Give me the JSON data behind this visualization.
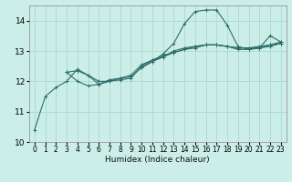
{
  "xlabel": "Humidex (Indice chaleur)",
  "bg_color": "#cceee8",
  "grid_color": "#aad8d0",
  "line_color": "#2d6e68",
  "xlim": [
    -0.5,
    23.5
  ],
  "ylim": [
    10,
    14.5
  ],
  "yticks": [
    10,
    11,
    12,
    13,
    14
  ],
  "xticks": [
    0,
    1,
    2,
    3,
    4,
    5,
    6,
    7,
    8,
    9,
    10,
    11,
    12,
    13,
    14,
    15,
    16,
    17,
    18,
    19,
    20,
    21,
    22,
    23
  ],
  "curves": [
    [
      0,
      10.4,
      1,
      11.5,
      2,
      11.8,
      3,
      12.0,
      4,
      12.4,
      5,
      12.2,
      6,
      11.9,
      7,
      12.0,
      8,
      12.1,
      9,
      12.2,
      10,
      12.55,
      11,
      12.7,
      12,
      12.8,
      13,
      13.0,
      14,
      13.1,
      15,
      13.15,
      16,
      13.2,
      17,
      13.2,
      18,
      13.15,
      19,
      13.1,
      20,
      13.1,
      21,
      13.15,
      22,
      13.2,
      23,
      13.3
    ],
    [
      3,
      12.3,
      4,
      12.0,
      5,
      11.85,
      6,
      11.9,
      7,
      12.05,
      8,
      12.1,
      9,
      12.15,
      10,
      12.45,
      11,
      12.65,
      12,
      12.8,
      13,
      12.95,
      14,
      13.05,
      15,
      13.15,
      16,
      13.2,
      17,
      13.2,
      18,
      13.15,
      19,
      13.1,
      20,
      13.1,
      21,
      13.1,
      22,
      13.2,
      23,
      13.25
    ],
    [
      10,
      12.45,
      11,
      12.65,
      12,
      12.9,
      13,
      13.25,
      14,
      13.9,
      15,
      14.3,
      16,
      14.35,
      17,
      14.35,
      18,
      13.85,
      19,
      13.15,
      20,
      13.05,
      21,
      13.1,
      22,
      13.5,
      23,
      13.3
    ],
    [
      3,
      12.3,
      4,
      12.35,
      5,
      12.2,
      6,
      12.0,
      7,
      12.0,
      8,
      12.05,
      9,
      12.1,
      10,
      12.5,
      11,
      12.7,
      12,
      12.85,
      13,
      12.95,
      14,
      13.05,
      15,
      13.1,
      16,
      13.2,
      17,
      13.2,
      18,
      13.15,
      19,
      13.05,
      20,
      13.05,
      21,
      13.1,
      22,
      13.15,
      23,
      13.25
    ]
  ],
  "xlabel_fontsize": 6.5,
  "tick_fontsize": 5.5,
  "ytick_fontsize": 6.5
}
